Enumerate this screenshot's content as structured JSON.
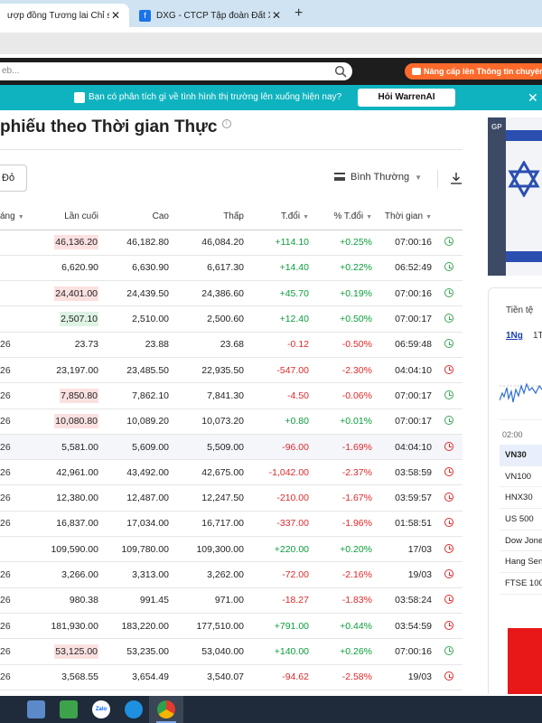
{
  "browser": {
    "tabs": [
      {
        "label": "ượp đồng Tương lai Chỉ số Chi",
        "active": true
      },
      {
        "label": "DXG - CTCP Tập đoàn Đất Xanh",
        "active": false
      }
    ],
    "new_tab": "+",
    "close_glyph": "✕"
  },
  "header": {
    "search_placeholder": "eb...",
    "upgrade_label": "Nâng cấp lên Thông tin chuyên"
  },
  "banner": {
    "text": "Bạn có phân tích gì về tình hình thị trường lên xuống hiện nay?",
    "button": "Hỏi WarrenAI",
    "close": "✕"
  },
  "page": {
    "title": "phiếu theo Thời gian Thực",
    "info": "i",
    "export_label": "Đỏ",
    "view_label": "Bình Thường",
    "view_caret": "▼"
  },
  "table": {
    "columns": [
      "áng",
      "Lần cuối",
      "Cao",
      "Thấp",
      "T.đổi",
      "% T.đổi",
      "Thời gian"
    ],
    "sort_arrow": "▼",
    "rows": [
      {
        "month": "",
        "last": "46,136.20",
        "high": "46,182.80",
        "low": "46,084.20",
        "chg": "+114.10",
        "pct": "+0.25%",
        "time": "07:00:16",
        "dir": "pos",
        "flash": "red",
        "clock": "green"
      },
      {
        "month": "",
        "last": "6,620.90",
        "high": "6,630.90",
        "low": "6,617.30",
        "chg": "+14.40",
        "pct": "+0.22%",
        "time": "06:52:49",
        "dir": "pos",
        "flash": "",
        "clock": "green"
      },
      {
        "month": "",
        "last": "24,401.00",
        "high": "24,439.50",
        "low": "24,386.60",
        "chg": "+45.70",
        "pct": "+0.19%",
        "time": "07:00:16",
        "dir": "pos",
        "flash": "red",
        "clock": "green"
      },
      {
        "month": "",
        "last": "2,507.10",
        "high": "2,510.00",
        "low": "2,500.60",
        "chg": "+12.40",
        "pct": "+0.50%",
        "time": "07:00:17",
        "dir": "pos",
        "flash": "green",
        "clock": "green"
      },
      {
        "month": "26",
        "last": "23.73",
        "high": "23.88",
        "low": "23.68",
        "chg": "-0.12",
        "pct": "-0.50%",
        "time": "06:59:48",
        "dir": "neg",
        "flash": "",
        "clock": "green"
      },
      {
        "month": "26",
        "last": "23,197.00",
        "high": "23,485.50",
        "low": "22,935.50",
        "chg": "-547.00",
        "pct": "-2.30%",
        "time": "04:04:10",
        "dir": "neg",
        "flash": "",
        "clock": "red"
      },
      {
        "month": "26",
        "last": "7,850.80",
        "high": "7,862.10",
        "low": "7,841.30",
        "chg": "-4.50",
        "pct": "-0.06%",
        "time": "07:00:17",
        "dir": "neg",
        "flash": "red",
        "clock": "green"
      },
      {
        "month": "26",
        "last": "10,080.80",
        "high": "10,089.20",
        "low": "10,073.20",
        "chg": "+0.80",
        "pct": "+0.01%",
        "time": "07:00:17",
        "dir": "pos",
        "flash": "red",
        "clock": "green"
      },
      {
        "month": "26",
        "last": "5,581.00",
        "high": "5,609.00",
        "low": "5,509.00",
        "chg": "-96.00",
        "pct": "-1.69%",
        "time": "04:04:10",
        "dir": "neg",
        "flash": "",
        "clock": "red",
        "highlight": true
      },
      {
        "month": "26",
        "last": "42,961.00",
        "high": "43,492.00",
        "low": "42,675.00",
        "chg": "-1,042.00",
        "pct": "-2.37%",
        "time": "03:58:59",
        "dir": "neg",
        "flash": "",
        "clock": "red"
      },
      {
        "month": "26",
        "last": "12,380.00",
        "high": "12,487.00",
        "low": "12,247.50",
        "chg": "-210.00",
        "pct": "-1.67%",
        "time": "03:59:57",
        "dir": "neg",
        "flash": "",
        "clock": "red"
      },
      {
        "month": "26",
        "last": "16,837.00",
        "high": "17,034.00",
        "low": "16,717.00",
        "chg": "-337.00",
        "pct": "-1.96%",
        "time": "01:58:51",
        "dir": "neg",
        "flash": "",
        "clock": "red"
      },
      {
        "month": "",
        "last": "109,590.00",
        "high": "109,780.00",
        "low": "109,300.00",
        "chg": "+220.00",
        "pct": "+0.20%",
        "time": "17/03",
        "dir": "pos",
        "flash": "",
        "clock": "red"
      },
      {
        "month": "26",
        "last": "3,266.00",
        "high": "3,313.00",
        "low": "3,262.00",
        "chg": "-72.00",
        "pct": "-2.16%",
        "time": "19/03",
        "dir": "neg",
        "flash": "",
        "clock": "red"
      },
      {
        "month": "26",
        "last": "980.38",
        "high": "991.45",
        "low": "971.00",
        "chg": "-18.27",
        "pct": "-1.83%",
        "time": "03:58:24",
        "dir": "neg",
        "flash": "",
        "clock": "red"
      },
      {
        "month": "26",
        "last": "181,930.00",
        "high": "183,220.00",
        "low": "177,510.00",
        "chg": "+791.00",
        "pct": "+0.44%",
        "time": "03:54:59",
        "dir": "pos",
        "flash": "",
        "clock": "red"
      },
      {
        "month": "26",
        "last": "53,125.00",
        "high": "53,235.00",
        "low": "53,040.00",
        "chg": "+140.00",
        "pct": "+0.26%",
        "time": "07:00:16",
        "dir": "pos",
        "flash": "red",
        "clock": "green"
      },
      {
        "month": "26",
        "last": "3,568.55",
        "high": "3,654.49",
        "low": "3,540.07",
        "chg": "-94.62",
        "pct": "-2.58%",
        "time": "19/03",
        "dir": "neg",
        "flash": "",
        "clock": "red"
      }
    ]
  },
  "sidebar": {
    "ad_text": "GP",
    "currency_label": "Tiền tệ",
    "range_tabs": [
      "1Ng",
      "1T"
    ],
    "chart_time_label": "02:00",
    "indices": [
      "VN30",
      "VN100",
      "HNX30",
      "US 500",
      "Dow Jones",
      "Hang Seng",
      "FTSE 100"
    ]
  },
  "colors": {
    "positive": "#0a9d3b",
    "negative": "#e0292b",
    "banner": "#0fb3bf",
    "upgrade": "#ff6a2b"
  },
  "taskbar": {
    "zalo_label": "Zalo"
  }
}
